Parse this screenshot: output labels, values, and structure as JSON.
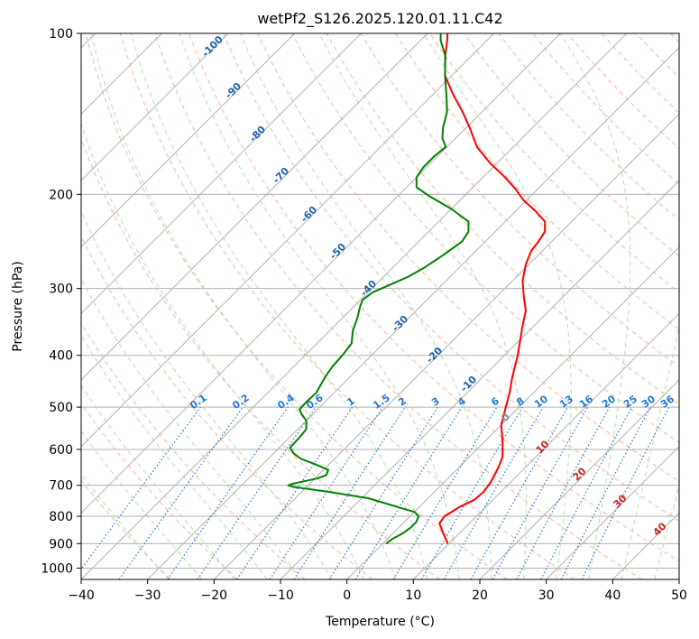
{
  "chart_data": {
    "type": "line",
    "subtype": "skew-T log-P diagram",
    "title": "wetPf2_S126.2025.120.01.11.C42",
    "xlabel": "Temperature (°C)",
    "ylabel": "Pressure (hPa)",
    "xlim": [
      -40,
      50
    ],
    "ylim": [
      1050,
      100
    ],
    "y_scale": "log",
    "x_ticks": [
      "−40",
      "−30",
      "−20",
      "−10",
      "0",
      "10",
      "20",
      "30",
      "40",
      "50"
    ],
    "y_ticks": [
      "100",
      "200",
      "300",
      "400",
      "500",
      "600",
      "700",
      "800",
      "900",
      "1000"
    ],
    "grid": true,
    "series": [
      {
        "name": "",
        "color": "#ff0000",
        "points": [
          [
            9.8,
            900
          ],
          [
            7.5,
            860
          ],
          [
            5.5,
            825
          ],
          [
            5.2,
            800
          ],
          [
            6,
            770
          ],
          [
            7.2,
            745
          ],
          [
            7.4,
            720
          ],
          [
            7,
            690
          ],
          [
            6,
            650
          ],
          [
            5,
            620
          ],
          [
            3,
            585
          ],
          [
            0,
            540
          ],
          [
            -2,
            500
          ],
          [
            -3.6,
            470
          ],
          [
            -5.5,
            440
          ],
          [
            -8,
            400
          ],
          [
            -9.5,
            380
          ],
          [
            -11.5,
            355
          ],
          [
            -13.5,
            330
          ],
          [
            -16,
            310
          ],
          [
            -18.5,
            290
          ],
          [
            -20.5,
            270
          ],
          [
            -21.7,
            255
          ],
          [
            -22,
            245
          ],
          [
            -22.5,
            235
          ],
          [
            -24,
            225
          ],
          [
            -27,
            215
          ],
          [
            -30.5,
            205
          ],
          [
            -33.5,
            195
          ],
          [
            -37,
            185
          ],
          [
            -41,
            175
          ],
          [
            -45.5,
            163
          ],
          [
            -49.5,
            150
          ],
          [
            -53,
            140
          ],
          [
            -57,
            130
          ],
          [
            -61,
            120
          ],
          [
            -64,
            110
          ],
          [
            -66,
            103
          ],
          [
            -67,
            100
          ]
        ]
      },
      {
        "name": "",
        "color": "#008000",
        "points": [
          [
            0.5,
            900
          ],
          [
            0.8,
            880
          ],
          [
            1.5,
            860
          ],
          [
            1.8,
            840
          ],
          [
            1.8,
            820
          ],
          [
            1.3,
            800
          ],
          [
            0,
            785
          ],
          [
            -3,
            770
          ],
          [
            -9,
            740
          ],
          [
            -16,
            720
          ],
          [
            -22,
            705
          ],
          [
            -23,
            700
          ],
          [
            -22.5,
            695
          ],
          [
            -19.7,
            680
          ],
          [
            -18.8,
            670
          ],
          [
            -19.3,
            655
          ],
          [
            -22,
            640
          ],
          [
            -25,
            625
          ],
          [
            -27,
            610
          ],
          [
            -28.4,
            595
          ],
          [
            -28.5,
            570
          ],
          [
            -28.7,
            550
          ],
          [
            -30,
            530
          ],
          [
            -31.7,
            515
          ],
          [
            -32.7,
            505
          ],
          [
            -32.8,
            490
          ],
          [
            -32.7,
            470
          ],
          [
            -33.7,
            440
          ],
          [
            -34.2,
            420
          ],
          [
            -34.4,
            400
          ],
          [
            -34.8,
            380
          ],
          [
            -36.5,
            360
          ],
          [
            -37.8,
            340
          ],
          [
            -39,
            325
          ],
          [
            -39.7,
            315
          ],
          [
            -39.3,
            305
          ],
          [
            -37.8,
            295
          ],
          [
            -36.3,
            285
          ],
          [
            -35.3,
            275
          ],
          [
            -34.3,
            260
          ],
          [
            -33.5,
            245
          ],
          [
            -34,
            235
          ],
          [
            -35.5,
            225
          ],
          [
            -40,
            213
          ],
          [
            -45.5,
            201
          ],
          [
            -48.5,
            194
          ],
          [
            -50,
            186
          ],
          [
            -50.5,
            178
          ],
          [
            -50.5,
            170
          ],
          [
            -50.2,
            163
          ],
          [
            -52,
            157
          ],
          [
            -53.5,
            150
          ],
          [
            -55.3,
            140
          ],
          [
            -58,
            130
          ],
          [
            -61,
            120
          ],
          [
            -64,
            110
          ],
          [
            -67,
            103
          ],
          [
            -68,
            100
          ]
        ]
      }
    ],
    "mixing_ratio_labels": [
      "0.1",
      "0.2",
      "0.4",
      "0.6",
      "1",
      "1.5",
      "2",
      "3",
      "4",
      "6",
      "8",
      "10",
      "13",
      "16",
      "20",
      "25",
      "30",
      "36"
    ],
    "moist_adiabat_labels": [
      "-100",
      "-90",
      "-80",
      "-70",
      "-60",
      "-50",
      "-40",
      "-30",
      "-20",
      "-10"
    ],
    "dry_adiabat_labels": [
      "0",
      "10",
      "20",
      "30",
      "40"
    ],
    "colors": {
      "temperature": "#ff0000",
      "dewpoint": "#008000",
      "isotherm": "#b0b0b0",
      "dry_adiabat": "#f7a488",
      "moist_adiabat": "#a8d8a8",
      "mixing_ratio": "#1f77d4",
      "label_blue": "#1f5fa8",
      "label_red": "#cc2222"
    }
  }
}
